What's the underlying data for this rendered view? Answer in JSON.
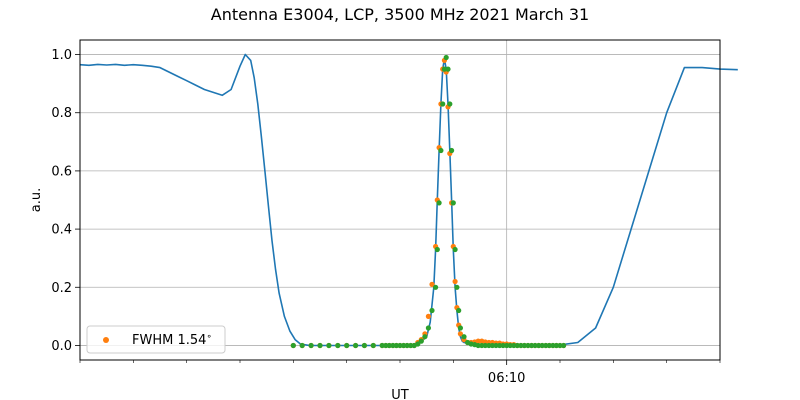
{
  "chart_data": {
    "type": "line",
    "title": "Antenna E3004, LCP, 3500 MHz 2021 March 31",
    "xlabel": "UT",
    "ylabel": "a.u.",
    "x_unit": "UT time",
    "xlim": [
      "06:06",
      "06:12"
    ],
    "ylim": [
      -0.05,
      1.05
    ],
    "yticks": [
      0.0,
      0.2,
      0.4,
      0.6,
      0.8,
      1.0
    ],
    "ytick_labels": [
      "0.0",
      "0.2",
      "0.4",
      "0.6",
      "0.8",
      "1.0"
    ],
    "xtick_major": [
      {
        "value": "06:10",
        "label": "06:10"
      }
    ],
    "xtick_minor": [
      "06:06",
      "06:06:30",
      "06:07",
      "06:07:30",
      "06:08",
      "06:08:30",
      "06:09",
      "06:09:30",
      "06:10:30",
      "06:11",
      "06:11:30",
      "06:12"
    ],
    "grid": true,
    "legend_position": "lower-left",
    "series": [
      {
        "color": "#1f77b4",
        "x": [
          "06:06:00",
          "06:06:05",
          "06:06:10",
          "06:06:15",
          "06:06:20",
          "06:06:25",
          "06:06:30",
          "06:06:35",
          "06:06:40",
          "06:06:45",
          "06:06:50",
          "06:06:55",
          "06:07:00",
          "06:07:05",
          "06:07:10",
          "06:07:15",
          "06:07:20",
          "06:07:25",
          "06:07:30",
          "06:07:33",
          "06:07:36",
          "06:07:38",
          "06:07:40",
          "06:07:42",
          "06:07:44",
          "06:07:46",
          "06:07:48",
          "06:07:50",
          "06:07:52",
          "06:07:55",
          "06:07:58",
          "06:08:01",
          "06:08:04",
          "06:08:08",
          "06:08:12",
          "06:08:16",
          "06:08:20",
          "06:08:30",
          "06:08:40",
          "06:08:50",
          "06:09:00",
          "06:09:10",
          "06:09:15",
          "06:09:17",
          "06:09:19",
          "06:09:20",
          "06:09:21",
          "06:09:22",
          "06:09:23",
          "06:09:24",
          "06:09:25",
          "06:09:26",
          "06:09:27",
          "06:09:28",
          "06:09:29",
          "06:09:30",
          "06:09:31",
          "06:09:32",
          "06:09:33",
          "06:09:34",
          "06:09:35",
          "06:09:36",
          "06:09:38",
          "06:09:40",
          "06:09:50",
          "06:10:00",
          "06:10:10",
          "06:10:20",
          "06:10:30",
          "06:10:40",
          "06:10:50",
          "06:11:00",
          "06:11:10",
          "06:11:20",
          "06:11:30",
          "06:11:40",
          "06:11:50",
          "06:12:00",
          "06:12:10"
        ],
        "y": [
          0.965,
          0.963,
          0.966,
          0.964,
          0.966,
          0.963,
          0.965,
          0.963,
          0.96,
          0.955,
          0.94,
          0.925,
          0.91,
          0.895,
          0.88,
          0.87,
          0.86,
          0.88,
          0.96,
          1.0,
          0.98,
          0.92,
          0.83,
          0.72,
          0.6,
          0.48,
          0.36,
          0.26,
          0.18,
          0.1,
          0.05,
          0.02,
          0.005,
          0.001,
          0.0,
          0.0,
          0.0,
          0.0,
          0.0,
          0.0,
          0.0,
          0.003,
          0.03,
          0.08,
          0.2,
          0.33,
          0.5,
          0.67,
          0.83,
          0.95,
          0.985,
          0.95,
          0.83,
          0.67,
          0.5,
          0.33,
          0.2,
          0.12,
          0.06,
          0.03,
          0.015,
          0.01,
          0.008,
          0.005,
          0.003,
          0.002,
          0.0,
          0.0,
          0.002,
          0.01,
          0.06,
          0.2,
          0.4,
          0.6,
          0.8,
          0.955,
          0.955,
          0.95,
          0.948
        ]
      }
    ],
    "scatter": [
      {
        "name": "FWHM 1.54$^\\circ$",
        "label_text": "FWHM 1.54",
        "color": "#ff7f0e",
        "x": [
          "06:08:00",
          "06:08:05",
          "06:08:10",
          "06:08:15",
          "06:08:20",
          "06:08:25",
          "06:08:30",
          "06:08:35",
          "06:08:40",
          "06:08:45",
          "06:08:50",
          "06:08:52",
          "06:08:54",
          "06:08:56",
          "06:08:58",
          "06:09:00",
          "06:09:02",
          "06:09:04",
          "06:09:06",
          "06:09:08",
          "06:09:10",
          "06:09:12",
          "06:09:14",
          "06:09:16",
          "06:09:18",
          "06:09:20",
          "06:09:21",
          "06:09:22",
          "06:09:23",
          "06:09:24",
          "06:09:25",
          "06:09:26",
          "06:09:27",
          "06:09:28",
          "06:09:29",
          "06:09:30",
          "06:09:31",
          "06:09:32",
          "06:09:33",
          "06:09:34",
          "06:09:36",
          "06:09:38",
          "06:09:40",
          "06:09:42",
          "06:09:44",
          "06:09:46",
          "06:09:48",
          "06:09:50",
          "06:09:52",
          "06:09:54",
          "06:09:56",
          "06:09:58",
          "06:10:00",
          "06:10:02",
          "06:10:04",
          "06:10:06",
          "06:10:08",
          "06:10:10",
          "06:10:12",
          "06:10:14",
          "06:10:16",
          "06:10:18",
          "06:10:20",
          "06:10:22",
          "06:10:24",
          "06:10:26",
          "06:10:28",
          "06:10:30",
          "06:10:32"
        ],
        "y": [
          0.0,
          0.0,
          0.0,
          0.0,
          0.0,
          0.0,
          0.0,
          0.0,
          0.0,
          0.0,
          0.0,
          0.0,
          0.0,
          0.0,
          0.0,
          0.0,
          0.0,
          0.0,
          0.0,
          0.0,
          0.01,
          0.02,
          0.04,
          0.1,
          0.21,
          0.34,
          0.5,
          0.68,
          0.83,
          0.95,
          0.98,
          0.94,
          0.82,
          0.66,
          0.49,
          0.34,
          0.22,
          0.13,
          0.07,
          0.04,
          0.02,
          0.01,
          0.01,
          0.012,
          0.015,
          0.015,
          0.012,
          0.01,
          0.01,
          0.008,
          0.008,
          0.005,
          0.005,
          0.003,
          0.003,
          0.0,
          0.0,
          0.0,
          0.0,
          0.0,
          0.0,
          0.0,
          0.0,
          0.0,
          0.0,
          0.0,
          0.0,
          0.0,
          0.0
        ]
      },
      {
        "color": "#2ca02c",
        "x": [
          "06:08:00",
          "06:08:05",
          "06:08:10",
          "06:08:15",
          "06:08:20",
          "06:08:25",
          "06:08:30",
          "06:08:35",
          "06:08:40",
          "06:08:45",
          "06:08:50",
          "06:08:52",
          "06:08:54",
          "06:08:56",
          "06:08:58",
          "06:09:00",
          "06:09:02",
          "06:09:04",
          "06:09:06",
          "06:09:08",
          "06:09:10",
          "06:09:12",
          "06:09:14",
          "06:09:16",
          "06:09:18",
          "06:09:20",
          "06:09:21",
          "06:09:22",
          "06:09:23",
          "06:09:24",
          "06:09:25",
          "06:09:26",
          "06:09:27",
          "06:09:28",
          "06:09:29",
          "06:09:30",
          "06:09:31",
          "06:09:32",
          "06:09:33",
          "06:09:34",
          "06:09:36",
          "06:09:38",
          "06:09:40",
          "06:09:42",
          "06:09:44",
          "06:09:46",
          "06:09:48",
          "06:09:50",
          "06:09:52",
          "06:09:54",
          "06:09:56",
          "06:09:58",
          "06:10:00",
          "06:10:02",
          "06:10:04",
          "06:10:06",
          "06:10:08",
          "06:10:10",
          "06:10:12",
          "06:10:14",
          "06:10:16",
          "06:10:18",
          "06:10:20",
          "06:10:22",
          "06:10:24",
          "06:10:26",
          "06:10:28",
          "06:10:30",
          "06:10:32"
        ],
        "y": [
          0.0,
          0.0,
          0.0,
          0.0,
          0.0,
          0.0,
          0.0,
          0.0,
          0.0,
          0.0,
          0.0,
          0.0,
          0.0,
          0.0,
          0.0,
          0.0,
          0.0,
          0.0,
          0.0,
          0.0,
          0.005,
          0.015,
          0.03,
          0.06,
          0.12,
          0.2,
          0.33,
          0.49,
          0.67,
          0.83,
          0.95,
          0.99,
          0.95,
          0.83,
          0.67,
          0.49,
          0.33,
          0.2,
          0.12,
          0.06,
          0.03,
          0.01,
          0.005,
          0.003,
          0.0,
          0.0,
          0.0,
          0.0,
          0.0,
          0.0,
          0.0,
          0.0,
          0.0,
          0.0,
          0.0,
          0.0,
          0.0,
          0.0,
          0.0,
          0.0,
          0.0,
          0.0,
          0.0,
          0.0,
          0.0,
          0.0,
          0.0,
          0.0,
          0.0
        ]
      }
    ]
  }
}
